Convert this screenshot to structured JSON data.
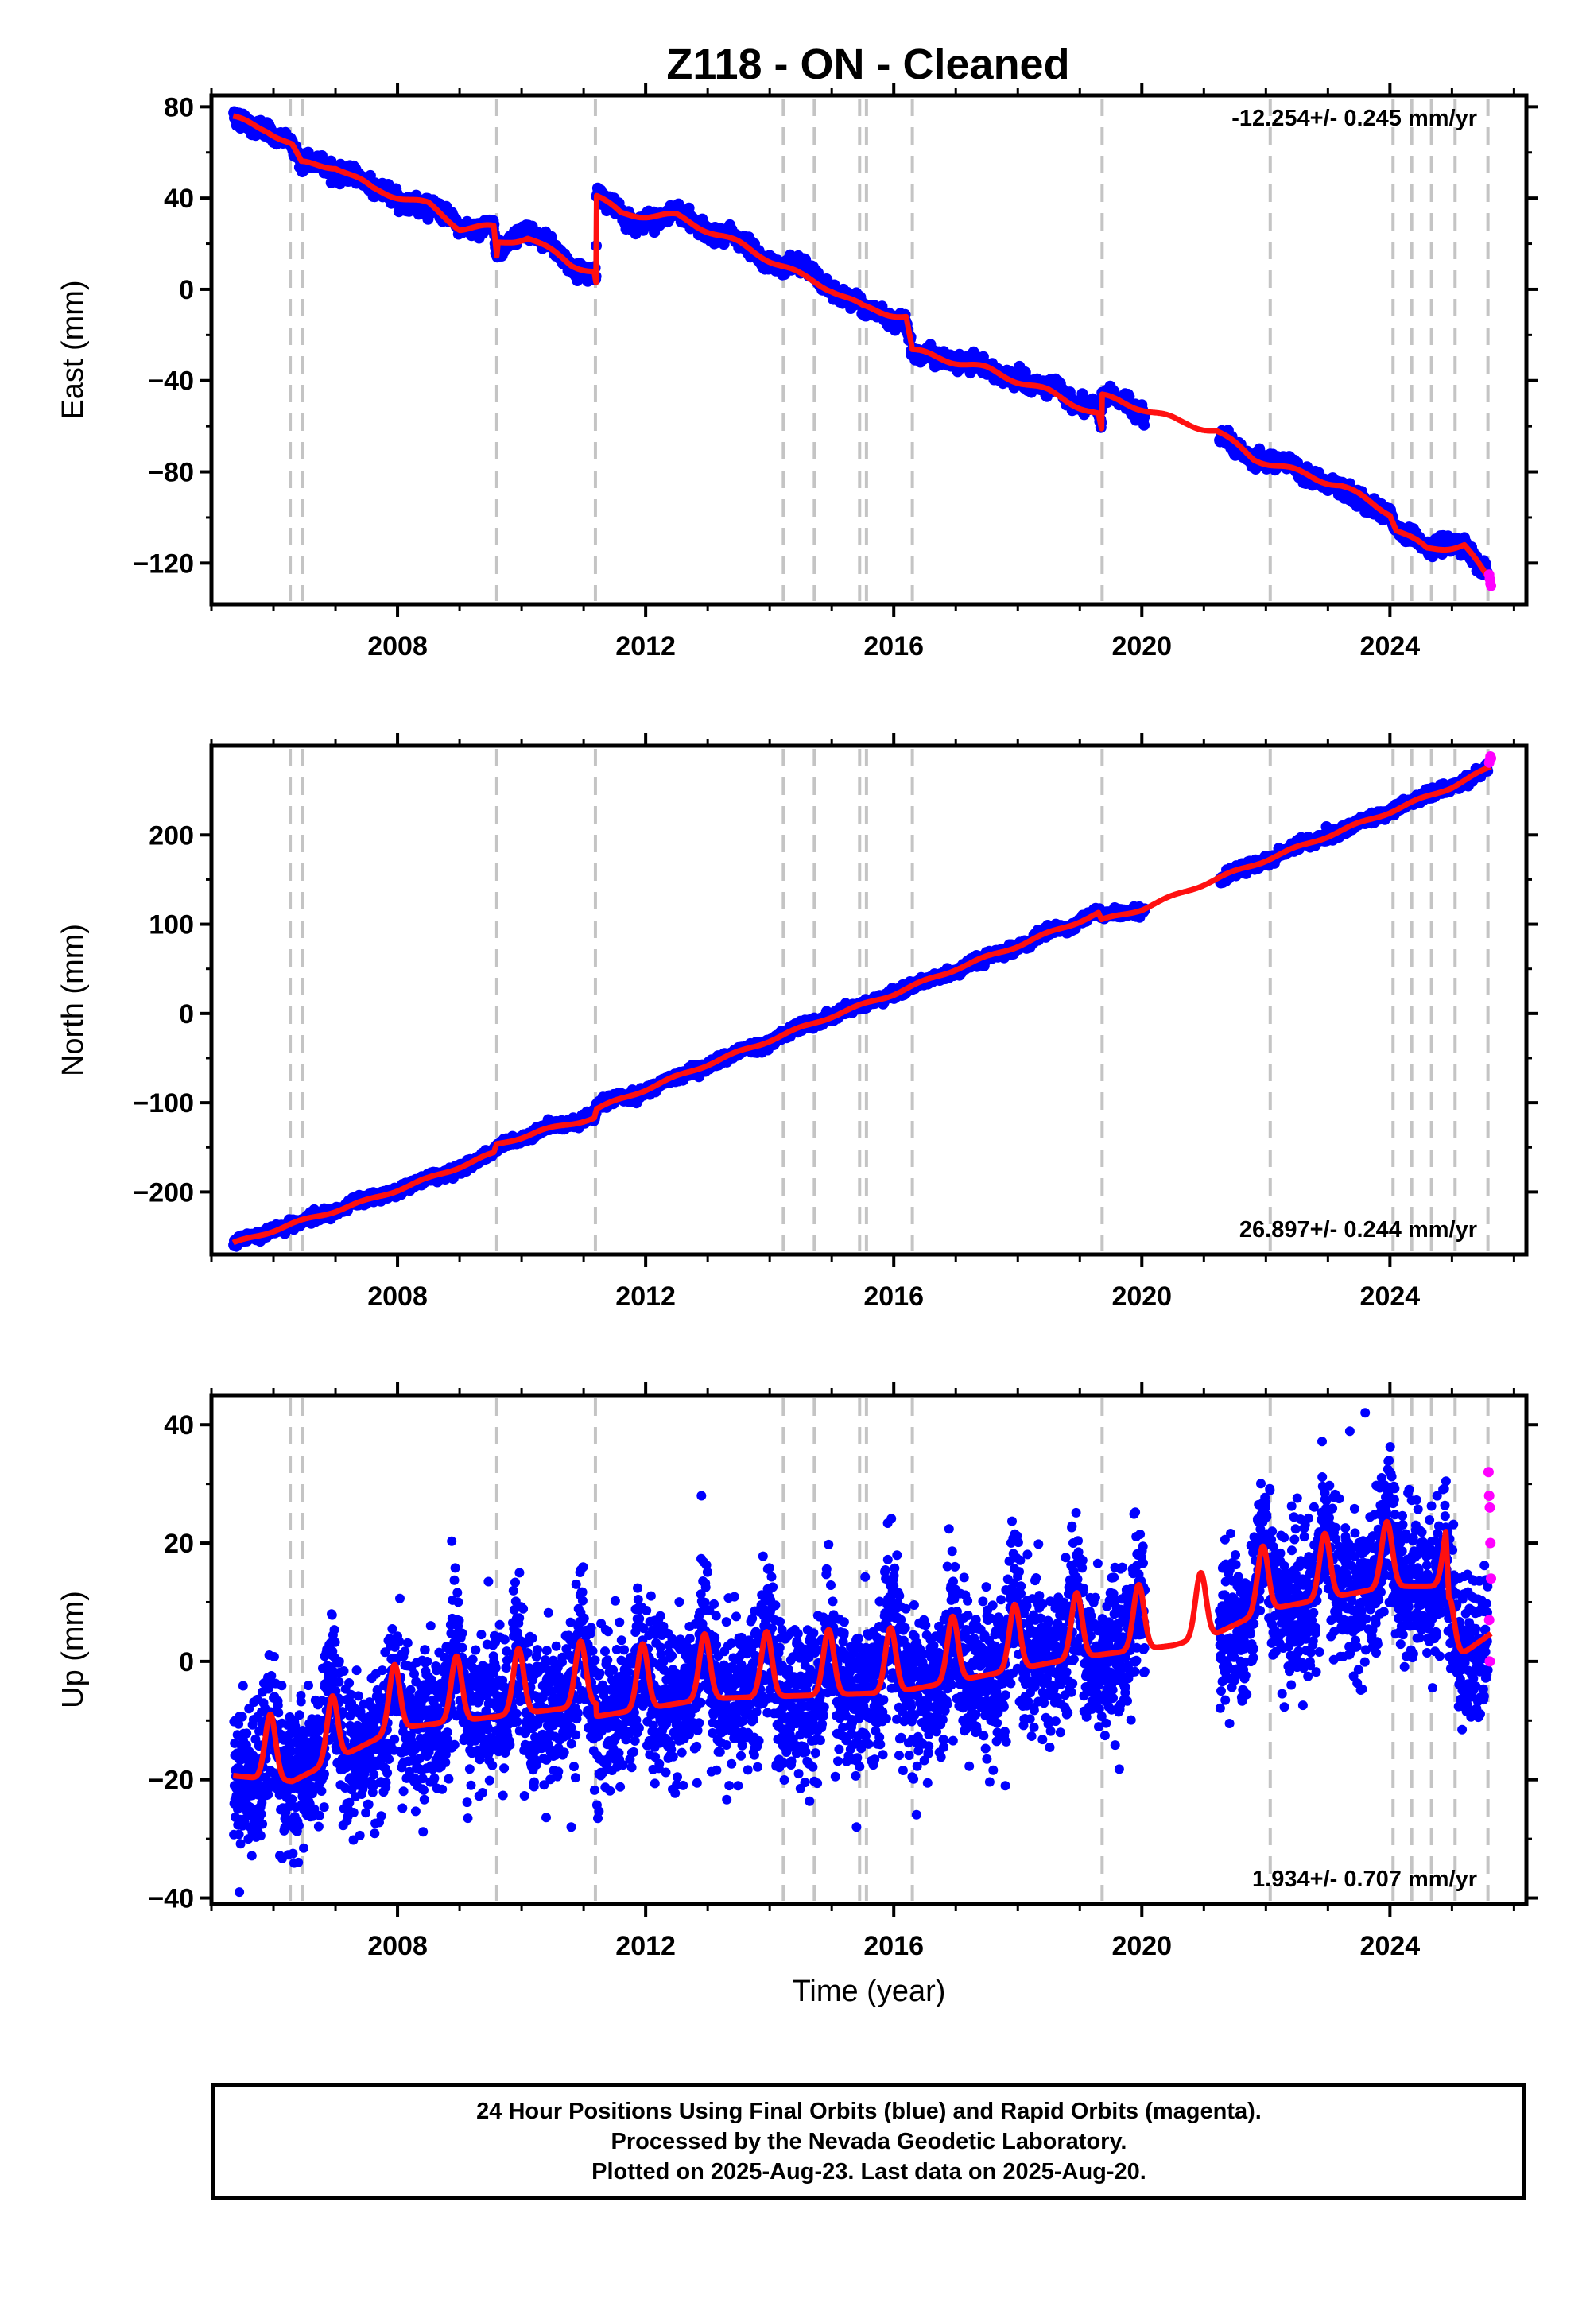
{
  "title": "Z118  - ON - Cleaned",
  "footer": {
    "lines": [
      "24 Hour Positions Using Final Orbits (blue) and Rapid Orbits (magenta).",
      "Processed by the Nevada Geodetic Laboratory.",
      "Plotted on 2025-Aug-23. Last data on 2025-Aug-20."
    ]
  },
  "colors": {
    "final_orbits": "#0000ff",
    "rapid_orbits": "#ff00ff",
    "model_fit": "#ff0000",
    "event_lines": "#c4c4c4"
  },
  "chart_data": [
    {
      "type": "scatter",
      "component": "East",
      "ylabel": "East (mm)",
      "xlabel": "",
      "xlim": [
        2005.0,
        2026.2
      ],
      "ylim": [
        -138,
        85
      ],
      "yticks": [
        80,
        40,
        0,
        -40,
        -80,
        -120
      ],
      "xticks": [
        2008,
        2012,
        2016,
        2020,
        2024
      ],
      "rate_label": "-12.254+/- 0.245 mm/yr",
      "rate_position": "top-right",
      "rate_mm_per_yr": -12.254,
      "noise_mm": 1.6,
      "fit_knots": [
        [
          2005.35,
          75
        ],
        [
          2005.9,
          70
        ],
        [
          2006.3,
          63
        ],
        [
          2006.45,
          55
        ],
        [
          2007,
          54
        ],
        [
          2007.6,
          44
        ],
        [
          2008.5,
          37
        ],
        [
          2009.0,
          27
        ],
        [
          2009.55,
          27
        ],
        [
          2009.6,
          14
        ],
        [
          2009.62,
          20
        ],
        [
          2010.1,
          23
        ],
        [
          2010.8,
          11
        ],
        [
          2011.17,
          8
        ],
        [
          2011.2,
          3
        ],
        [
          2011.21,
          41
        ],
        [
          2011.6,
          33
        ],
        [
          2012.5,
          32
        ],
        [
          2013.5,
          20
        ],
        [
          2014.5,
          6
        ],
        [
          2015.0,
          0
        ],
        [
          2015.5,
          -8
        ],
        [
          2016.2,
          -12
        ],
        [
          2016.3,
          -27
        ],
        [
          2017.5,
          -35
        ],
        [
          2018.5,
          -45
        ],
        [
          2019.3,
          -55
        ],
        [
          2019.35,
          -62
        ],
        [
          2019.36,
          -47
        ],
        [
          2020.0,
          -52
        ],
        [
          2020.6,
          -58
        ],
        [
          2021.2,
          -62
        ],
        [
          2021.8,
          -74
        ],
        [
          2022.5,
          -80
        ],
        [
          2023.2,
          -86
        ],
        [
          2024.0,
          -98
        ],
        [
          2024.1,
          -105
        ],
        [
          2024.6,
          -114
        ],
        [
          2025.2,
          -112
        ],
        [
          2025.58,
          -127
        ],
        [
          2025.63,
          -129
        ]
      ],
      "seasonal_amp_mm": 1.5,
      "rapid_points": {
        "x": [
          2025.6,
          2025.61,
          2025.62,
          2025.63
        ],
        "y": [
          -125,
          -127,
          -129,
          -130
        ]
      },
      "gaps": [
        [
          2020.05,
          2021.25
        ]
      ]
    },
    {
      "type": "scatter",
      "component": "North",
      "ylabel": "North (mm)",
      "xlabel": "",
      "xlim": [
        2005.0,
        2026.2
      ],
      "ylim": [
        -270,
        300
      ],
      "yticks": [
        200,
        100,
        0,
        -100,
        -200
      ],
      "xticks": [
        2008,
        2012,
        2016,
        2020,
        2024
      ],
      "rate_label": "26.897+/- 0.244 mm/yr",
      "rate_position": "bottom-right",
      "rate_mm_per_yr": 26.897,
      "noise_mm": 2.5,
      "fit_knots": [
        [
          2005.35,
          -258
        ],
        [
          2006.3,
          -236
        ],
        [
          2007.5,
          -210
        ],
        [
          2008.5,
          -185
        ],
        [
          2009.55,
          -157
        ],
        [
          2009.6,
          -147
        ],
        [
          2010.3,
          -132
        ],
        [
          2011.17,
          -117
        ],
        [
          2011.21,
          -107
        ],
        [
          2012.0,
          -85
        ],
        [
          2013.0,
          -57
        ],
        [
          2014.0,
          -30
        ],
        [
          2015.0,
          -3
        ],
        [
          2016.0,
          22
        ],
        [
          2017.0,
          50
        ],
        [
          2018.0,
          76
        ],
        [
          2019.3,
          112
        ],
        [
          2019.35,
          104
        ],
        [
          2020.0,
          117
        ],
        [
          2021.25,
          152
        ],
        [
          2022.0,
          172
        ],
        [
          2023.0,
          199
        ],
        [
          2024.0,
          226
        ],
        [
          2025.0,
          254
        ],
        [
          2025.63,
          276
        ]
      ],
      "seasonal_amp_mm": 2,
      "rapid_points": {
        "x": [
          2025.6,
          2025.61,
          2025.62,
          2025.63
        ],
        "y": [
          281,
          284,
          288,
          286
        ]
      },
      "gaps": [
        [
          2020.05,
          2021.25
        ]
      ]
    },
    {
      "type": "scatter",
      "component": "Up",
      "ylabel": "Up (mm)",
      "xlabel": "Time (year)",
      "xlim": [
        2005.0,
        2026.2
      ],
      "ylim": [
        -41,
        45
      ],
      "yticks": [
        40,
        20,
        0,
        -20,
        -40
      ],
      "xticks": [
        2008,
        2012,
        2016,
        2020,
        2024
      ],
      "rate_label": "1.934+/- 0.707 mm/yr",
      "rate_position": "bottom-right",
      "rate_mm_per_yr": 1.934,
      "noise_mm": 6.2,
      "fit_knots": [
        [
          2005.35,
          -16
        ],
        [
          2006.3,
          -17
        ],
        [
          2008.0,
          -8
        ],
        [
          2011.2,
          -4
        ],
        [
          2011.21,
          -6
        ],
        [
          2013.0,
          -3
        ],
        [
          2016.0,
          -2
        ],
        [
          2019.0,
          4
        ],
        [
          2020.5,
          6
        ],
        [
          2021.2,
          8
        ],
        [
          2022.0,
          12
        ],
        [
          2024.0,
          16
        ],
        [
          2024.9,
          16
        ],
        [
          2024.95,
          3
        ],
        [
          2025.63,
          8
        ]
      ],
      "seasonal_amp_mm": 5.5,
      "rapid_points": {
        "x": [
          2025.59,
          2025.6,
          2025.61,
          2025.62,
          2025.63,
          2025.6,
          2025.61
        ],
        "y": [
          32,
          28,
          26,
          20,
          14,
          7,
          0
        ]
      },
      "gaps": [
        [
          2020.05,
          2021.25
        ]
      ],
      "outliers": {
        "x": [
          2005.45,
          2006.4,
          2010.8,
          2012.9,
          2015.4,
          2017.8,
          2023.6
        ],
        "y": [
          -39,
          -34,
          -28,
          28,
          -28,
          -21,
          42
        ]
      }
    }
  ],
  "event_lines_year": [
    2006.27,
    2006.47,
    2009.6,
    2011.19,
    2014.22,
    2014.72,
    2015.45,
    2015.56,
    2016.3,
    2019.36,
    2022.07,
    2024.05,
    2024.35,
    2024.67,
    2025.05,
    2025.58
  ]
}
